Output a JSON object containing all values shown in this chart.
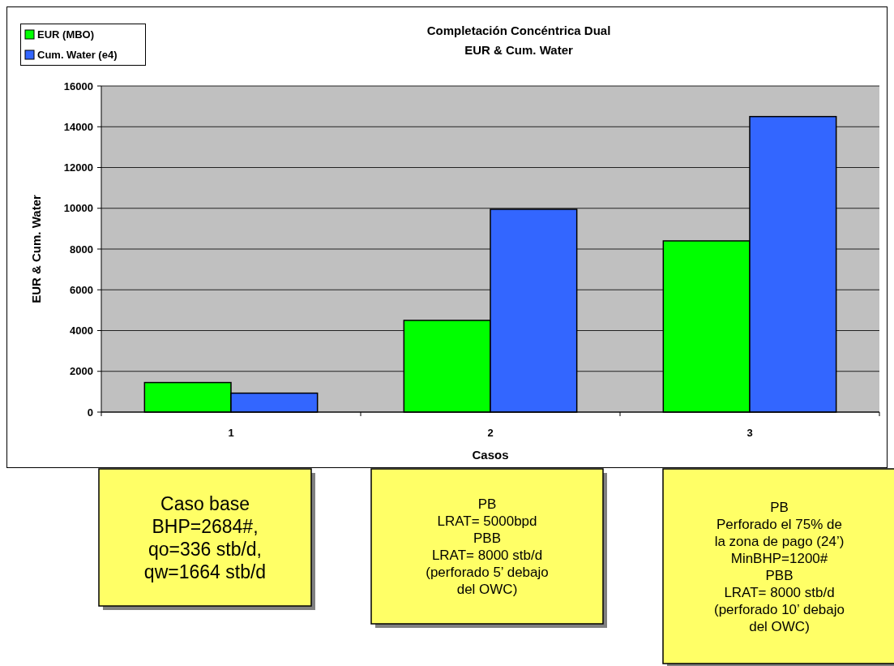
{
  "chart_data": {
    "type": "bar",
    "title": "Completación Concéntrica Dual\nEUR & Cum. Water",
    "xlabel": "Casos",
    "ylabel": "EUR & Cum. Water",
    "categories": [
      "1",
      "2",
      "3"
    ],
    "series": [
      {
        "name": "EUR (MBO)",
        "color": "#00ff00",
        "values": [
          1450,
          4500,
          8400
        ]
      },
      {
        "name": "Cum. Water (e4)",
        "color": "#3366ff",
        "values": [
          930,
          9950,
          14500
        ]
      }
    ],
    "ylim": [
      0,
      16000
    ],
    "yticks": [
      0,
      2000,
      4000,
      6000,
      8000,
      10000,
      12000,
      14000,
      16000
    ],
    "grid": "y",
    "legend": "top left",
    "annotations": [
      "Caso base\nBHP=2684#,\nqo=336 stb/d,\nqw=1664 stb/d",
      "PB\nLRAT= 5000bpd\nPBB\nLRAT= 8000 stb/d\n(perforado 5’ debajo\ndel OWC)",
      "PB\nPerforado el  75% de\nla zona de pago (24’)\nMinBHP=1200#\nPBB\nLRAT= 8000 stb/d\n(perforado 10’ debajo\ndel OWC)"
    ]
  }
}
